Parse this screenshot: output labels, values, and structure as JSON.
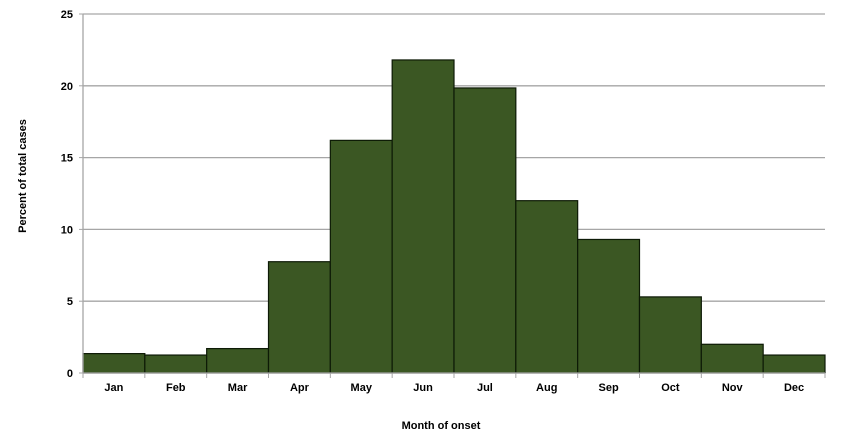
{
  "chart_data": {
    "type": "bar",
    "title": "",
    "xlabel": "Month of onset",
    "ylabel": "Percent of total cases",
    "categories": [
      "Jan",
      "Feb",
      "Mar",
      "Apr",
      "May",
      "Jun",
      "Jul",
      "Aug",
      "Sep",
      "Oct",
      "Nov",
      "Dec"
    ],
    "values": [
      1.35,
      1.25,
      1.7,
      7.75,
      16.2,
      21.8,
      19.85,
      12.0,
      9.3,
      5.3,
      2.0,
      1.25
    ],
    "ylim": [
      0,
      25
    ],
    "yticks": [
      0,
      5,
      10,
      15,
      20,
      25
    ],
    "grid": true,
    "legend": null,
    "bar_color": "#3b5723",
    "bar_edge_color": "#0d1a06",
    "grid_color": "#a6a6a6"
  }
}
